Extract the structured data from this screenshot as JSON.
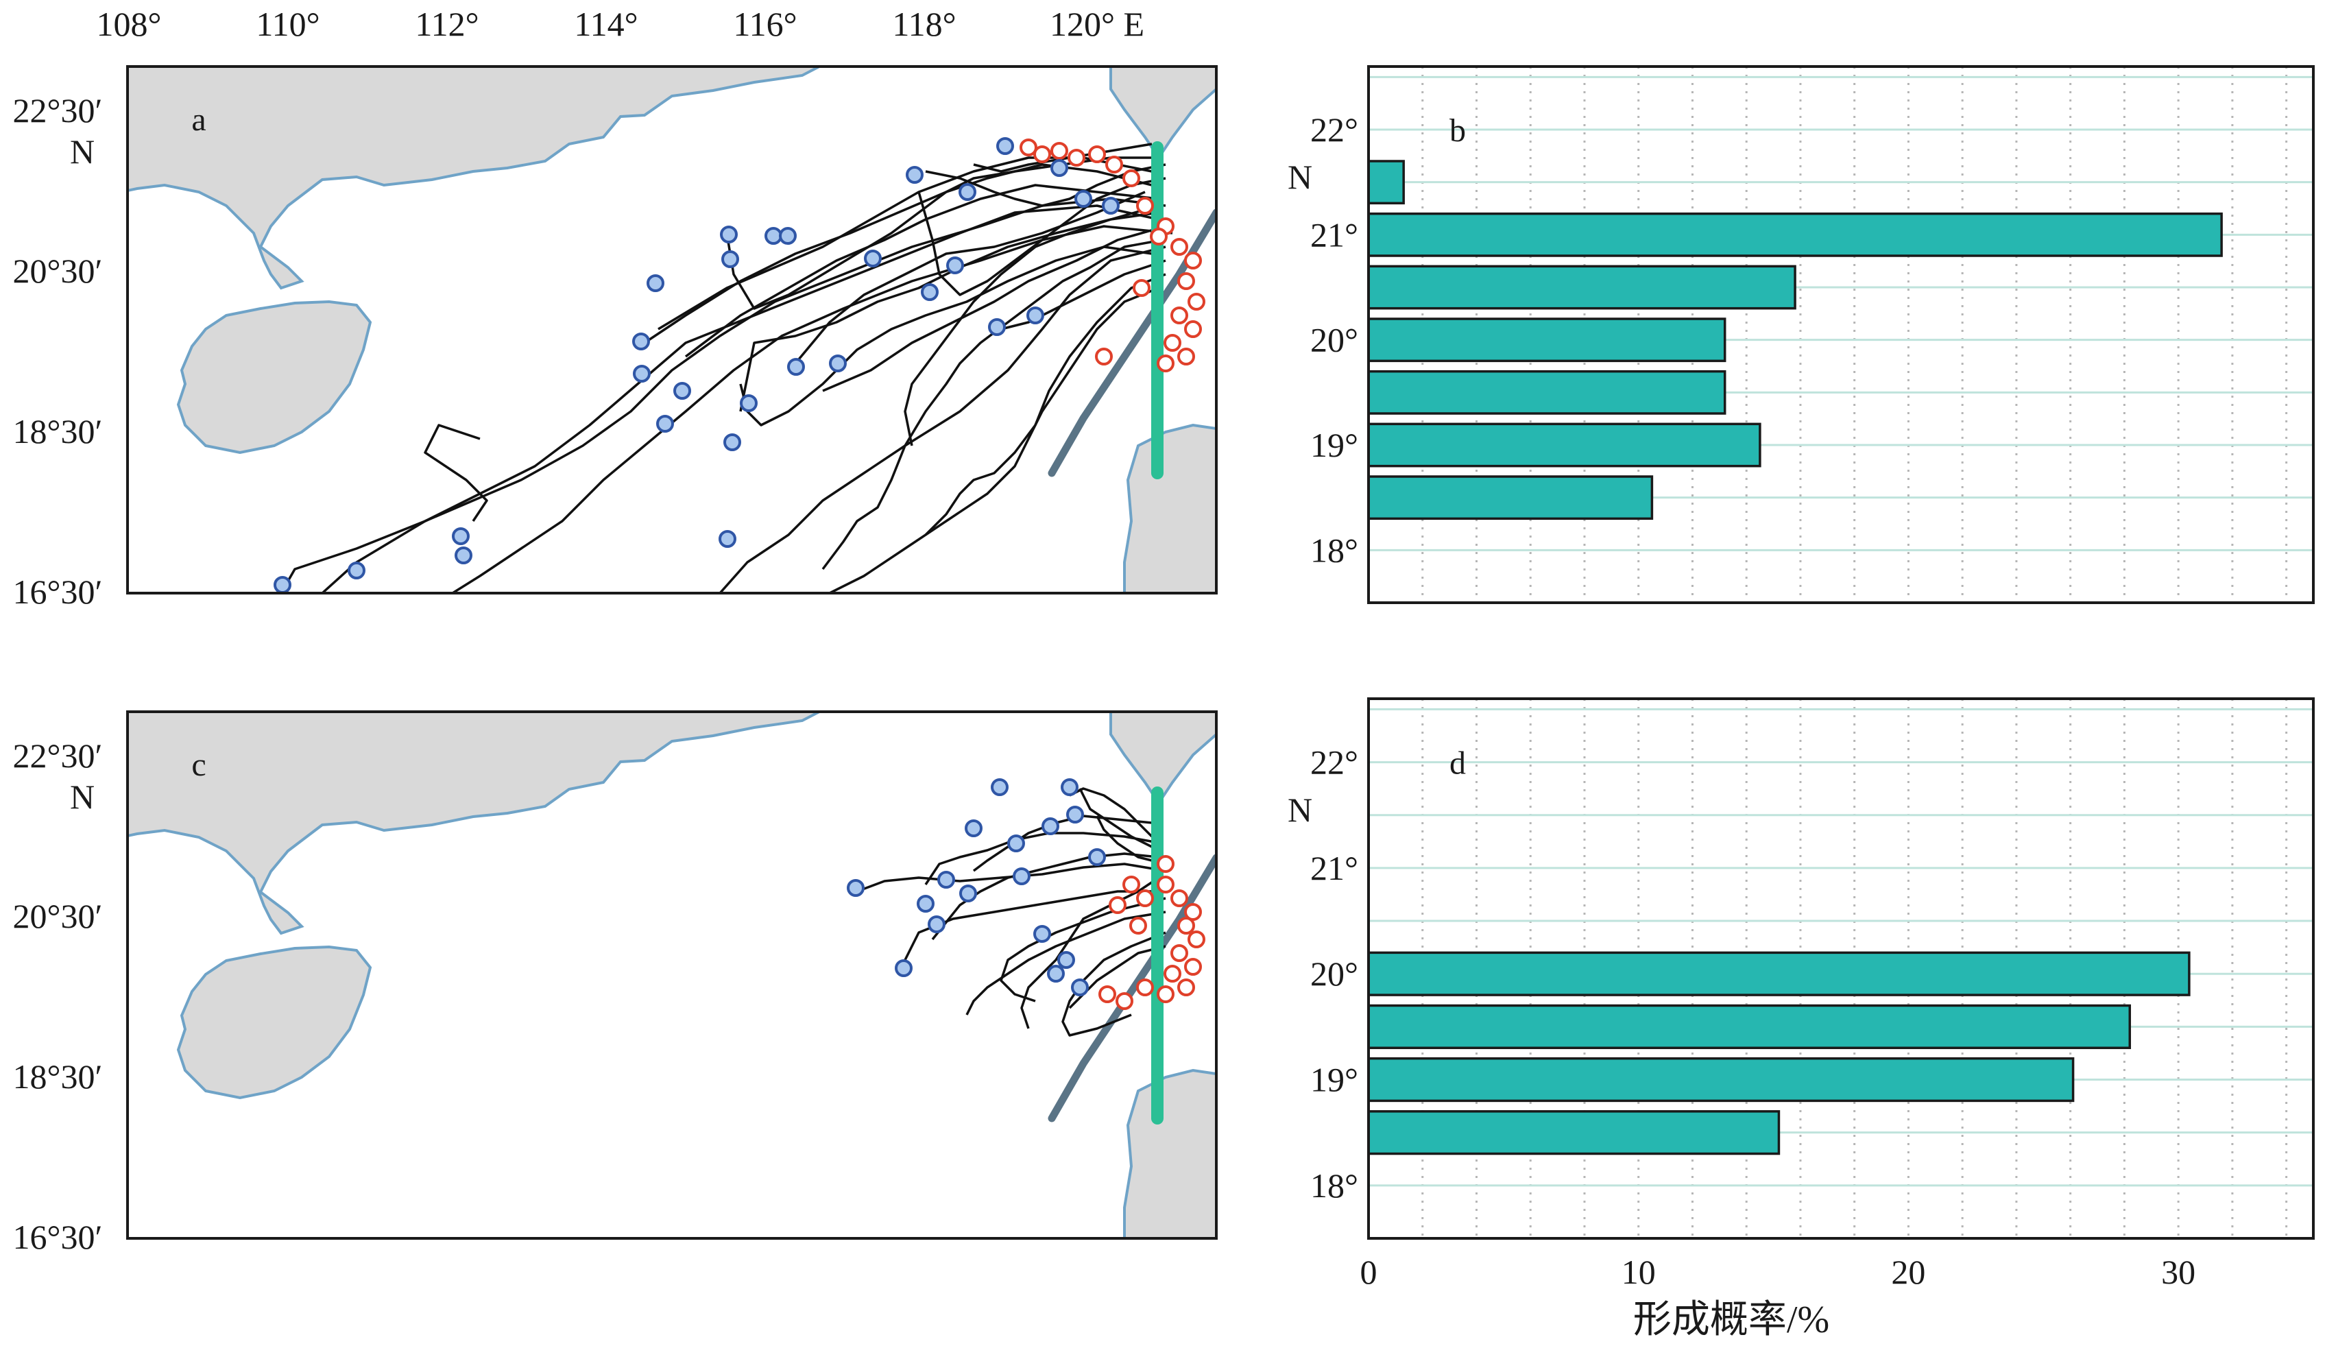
{
  "map_axes": {
    "lon_ticks": [
      "108°",
      "110°",
      "112°",
      "114°",
      "116°",
      "118°",
      "120° E"
    ],
    "lon_values": [
      108,
      110,
      112,
      114,
      116,
      118,
      120
    ],
    "lat_ticks": [
      "22°30′",
      "20°30′",
      "18°30′",
      "16°30′"
    ],
    "lat_values": [
      22.5,
      20.5,
      18.5,
      16.5
    ],
    "lat_hemisphere": "N",
    "lon_range": [
      108,
      121.5
    ],
    "lat_range": [
      16.5,
      23.0
    ]
  },
  "colors": {
    "land": "#d9d9d9",
    "coast": "#6fa3c7",
    "track": "#111111",
    "start_marker_edge": "#e0402a",
    "end_marker_fill": "#a9c7ee",
    "end_marker_edge": "#2f56a6",
    "section": "#2bbf95",
    "ridge": "#5a7486",
    "bar": "#26b7b0",
    "bar_edge": "#1a1a1a",
    "grid": "#bfe3dc"
  },
  "panel_a": {
    "label": "a",
    "section_lon": 120.8,
    "section_lat_range": [
      17.5,
      21.6
    ]
  },
  "panel_c": {
    "label": "c",
    "section_lon": 120.8,
    "section_lat_range": [
      17.5,
      21.6
    ]
  },
  "chart_data": [
    {
      "type": "bar",
      "panel": "b",
      "orientation": "horizontal",
      "label": "b",
      "y_ticks": [
        "22°",
        "21°",
        "20°",
        "19°",
        "18°"
      ],
      "y_tick_values": [
        22,
        21,
        20,
        19,
        18
      ],
      "y_hemisphere": "N",
      "ylim": [
        17.5,
        22.6
      ],
      "xlim": [
        0,
        35
      ],
      "x_ticks": [
        "0",
        "10",
        "20",
        "30"
      ],
      "x_tick_values": [
        0,
        10,
        20,
        30
      ],
      "xlabel": "形成概率/%",
      "grid": true,
      "bins": [
        {
          "lat": 21.5,
          "value": 1.3
        },
        {
          "lat": 21.0,
          "value": 31.6
        },
        {
          "lat": 20.5,
          "value": 15.8
        },
        {
          "lat": 20.0,
          "value": 13.2
        },
        {
          "lat": 19.5,
          "value": 13.2
        },
        {
          "lat": 19.0,
          "value": 14.5
        },
        {
          "lat": 18.5,
          "value": 10.5
        }
      ]
    },
    {
      "type": "bar",
      "panel": "d",
      "orientation": "horizontal",
      "label": "d",
      "y_ticks": [
        "22°",
        "21°",
        "20°",
        "19°",
        "18°"
      ],
      "y_tick_values": [
        22,
        21,
        20,
        19,
        18
      ],
      "y_hemisphere": "N",
      "ylim": [
        17.5,
        22.6
      ],
      "xlim": [
        0,
        35
      ],
      "x_ticks": [
        "0",
        "10",
        "20",
        "30"
      ],
      "x_tick_values": [
        0,
        10,
        20,
        30
      ],
      "xlabel": "形成概率/%",
      "grid": true,
      "bins": [
        {
          "lat": 20.0,
          "value": 30.4
        },
        {
          "lat": 19.5,
          "value": 28.2
        },
        {
          "lat": 19.0,
          "value": 26.1
        },
        {
          "lat": 18.5,
          "value": 15.2
        }
      ]
    }
  ]
}
